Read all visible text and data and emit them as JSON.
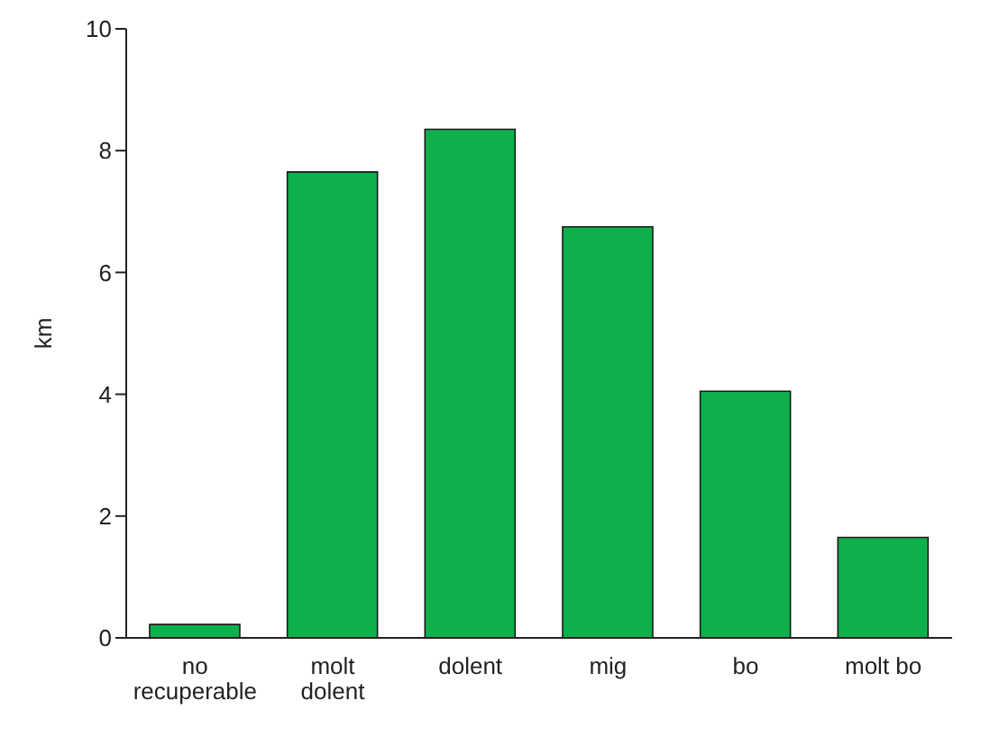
{
  "chart_data": {
    "type": "bar",
    "ylabel": "km",
    "categories": [
      "no recuperable",
      "molt dolent",
      "dolent",
      "mig",
      "bo",
      "molt bo"
    ],
    "values": [
      0.22,
      7.65,
      8.35,
      6.75,
      4.05,
      1.65
    ],
    "color": "#0db04b",
    "ylim": [
      0,
      10
    ],
    "yticks": [
      0,
      2,
      4,
      6,
      8,
      10
    ],
    "grid": false,
    "legend": false
  }
}
